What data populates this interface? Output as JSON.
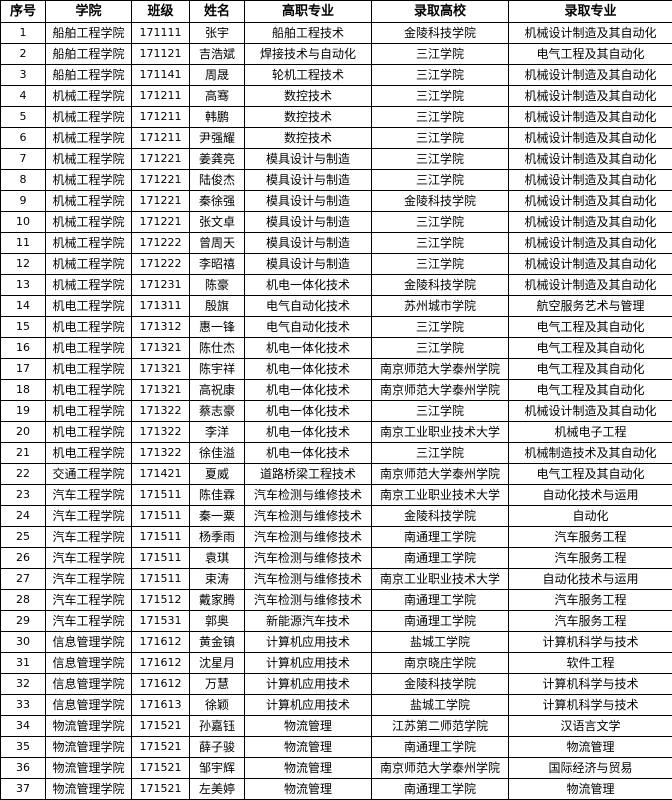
{
  "table": {
    "headers": [
      "序号",
      "学院",
      "班级",
      "姓名",
      "高职专业",
      "录取高校",
      "录取专业"
    ],
    "rows": [
      [
        "1",
        "船舶工程学院",
        "171111",
        "张宇",
        "船舶工程技术",
        "金陵科技学院",
        "机械设计制造及其自动化"
      ],
      [
        "2",
        "船舶工程学院",
        "171121",
        "吉浩斌",
        "焊接技术与自动化",
        "三江学院",
        "电气工程及其自动化"
      ],
      [
        "3",
        "船舶工程学院",
        "171141",
        "周晟",
        "轮机工程技术",
        "三江学院",
        "机械设计制造及其自动化"
      ],
      [
        "4",
        "机械工程学院",
        "171211",
        "高骞",
        "数控技术",
        "三江学院",
        "机械设计制造及其自动化"
      ],
      [
        "5",
        "机械工程学院",
        "171211",
        "韩鹏",
        "数控技术",
        "三江学院",
        "机械设计制造及其自动化"
      ],
      [
        "6",
        "机械工程学院",
        "171211",
        "尹强耀",
        "数控技术",
        "三江学院",
        "机械设计制造及其自动化"
      ],
      [
        "7",
        "机械工程学院",
        "171221",
        "姜龚亮",
        "模具设计与制造",
        "三江学院",
        "机械设计制造及其自动化"
      ],
      [
        "8",
        "机械工程学院",
        "171221",
        "陆俊杰",
        "模具设计与制造",
        "三江学院",
        "机械设计制造及其自动化"
      ],
      [
        "9",
        "机械工程学院",
        "171221",
        "秦徐强",
        "模具设计与制造",
        "金陵科技学院",
        "机械设计制造及其自动化"
      ],
      [
        "10",
        "机械工程学院",
        "171221",
        "张文卓",
        "模具设计与制造",
        "三江学院",
        "机械设计制造及其自动化"
      ],
      [
        "11",
        "机械工程学院",
        "171222",
        "曾周天",
        "模具设计与制造",
        "三江学院",
        "机械设计制造及其自动化"
      ],
      [
        "12",
        "机械工程学院",
        "171222",
        "李昭禧",
        "模具设计与制造",
        "三江学院",
        "机械设计制造及其自动化"
      ],
      [
        "13",
        "机械工程学院",
        "171231",
        "陈豪",
        "机电一体化技术",
        "金陵科技学院",
        "机械设计制造及其自动化"
      ],
      [
        "14",
        "机电工程学院",
        "171311",
        "殷旗",
        "电气自动化技术",
        "苏州城市学院",
        "航空服务艺术与管理"
      ],
      [
        "15",
        "机电工程学院",
        "171312",
        "惠一锋",
        "电气自动化技术",
        "三江学院",
        "电气工程及其自动化"
      ],
      [
        "16",
        "机电工程学院",
        "171321",
        "陈仕杰",
        "机电一体化技术",
        "三江学院",
        "电气工程及其自动化"
      ],
      [
        "17",
        "机电工程学院",
        "171321",
        "陈宇祥",
        "机电一体化技术",
        "南京师范大学泰州学院",
        "电气工程及其自动化"
      ],
      [
        "18",
        "机电工程学院",
        "171321",
        "高祝康",
        "机电一体化技术",
        "南京师范大学泰州学院",
        "电气工程及其自动化"
      ],
      [
        "19",
        "机电工程学院",
        "171322",
        "蔡志豪",
        "机电一体化技术",
        "三江学院",
        "机械设计制造及其自动化"
      ],
      [
        "20",
        "机电工程学院",
        "171322",
        "李洋",
        "机电一体化技术",
        "南京工业职业技术大学",
        "机械电子工程"
      ],
      [
        "21",
        "机电工程学院",
        "171322",
        "徐佳溢",
        "机电一体化技术",
        "三江学院",
        "机械制造技术及其自动化"
      ],
      [
        "22",
        "交通工程学院",
        "171421",
        "夏威",
        "道路桥梁工程技术",
        "南京师范大学泰州学院",
        "电气工程及其自动化"
      ],
      [
        "23",
        "汽车工程学院",
        "171511",
        "陈佳霖",
        "汽车检测与维修技术",
        "南京工业职业技术大学",
        "自动化技术与运用"
      ],
      [
        "24",
        "汽车工程学院",
        "171511",
        "秦一粟",
        "汽车检测与维修技术",
        "金陵科技学院",
        "自动化"
      ],
      [
        "25",
        "汽车工程学院",
        "171511",
        "杨季雨",
        "汽车检测与维修技术",
        "南通理工学院",
        "汽车服务工程"
      ],
      [
        "26",
        "汽车工程学院",
        "171511",
        "袁琪",
        "汽车检测与维修技术",
        "南通理工学院",
        "汽车服务工程"
      ],
      [
        "27",
        "汽车工程学院",
        "171511",
        "束涛",
        "汽车检测与维修技术",
        "南京工业职业技术大学",
        "自动化技术与运用"
      ],
      [
        "28",
        "汽车工程学院",
        "171512",
        "戴家腾",
        "汽车检测与维修技术",
        "南通理工学院",
        "汽车服务工程"
      ],
      [
        "29",
        "汽车工程学院",
        "171531",
        "郭奥",
        "新能源汽车技术",
        "南通理工学院",
        "汽车服务工程"
      ],
      [
        "30",
        "信息管理学院",
        "171612",
        "黄金镇",
        "计算机应用技术",
        "盐城工学院",
        "计算机科学与技术"
      ],
      [
        "31",
        "信息管理学院",
        "171612",
        "沈星月",
        "计算机应用技术",
        "南京晓庄学院",
        "软件工程"
      ],
      [
        "32",
        "信息管理学院",
        "171612",
        "万慧",
        "计算机应用技术",
        "金陵科技学院",
        "计算机科学与技术"
      ],
      [
        "33",
        "信息管理学院",
        "171613",
        "徐颖",
        "计算机应用技术",
        "盐城工学院",
        "计算机科学与技术"
      ],
      [
        "34",
        "物流管理学院",
        "171521",
        "孙嘉钰",
        "物流管理",
        "江苏第二师范学院",
        "汉语言文学"
      ],
      [
        "35",
        "物流管理学院",
        "171521",
        "薛子骏",
        "物流管理",
        "南通理工学院",
        "物流管理"
      ],
      [
        "36",
        "物流管理学院",
        "171521",
        "邹宇辉",
        "物流管理",
        "南京师范大学泰州学院",
        "国际经济与贸易"
      ],
      [
        "37",
        "物流管理学院",
        "171521",
        "左美婷",
        "物流管理",
        "南通理工学院",
        "物流管理"
      ]
    ]
  }
}
